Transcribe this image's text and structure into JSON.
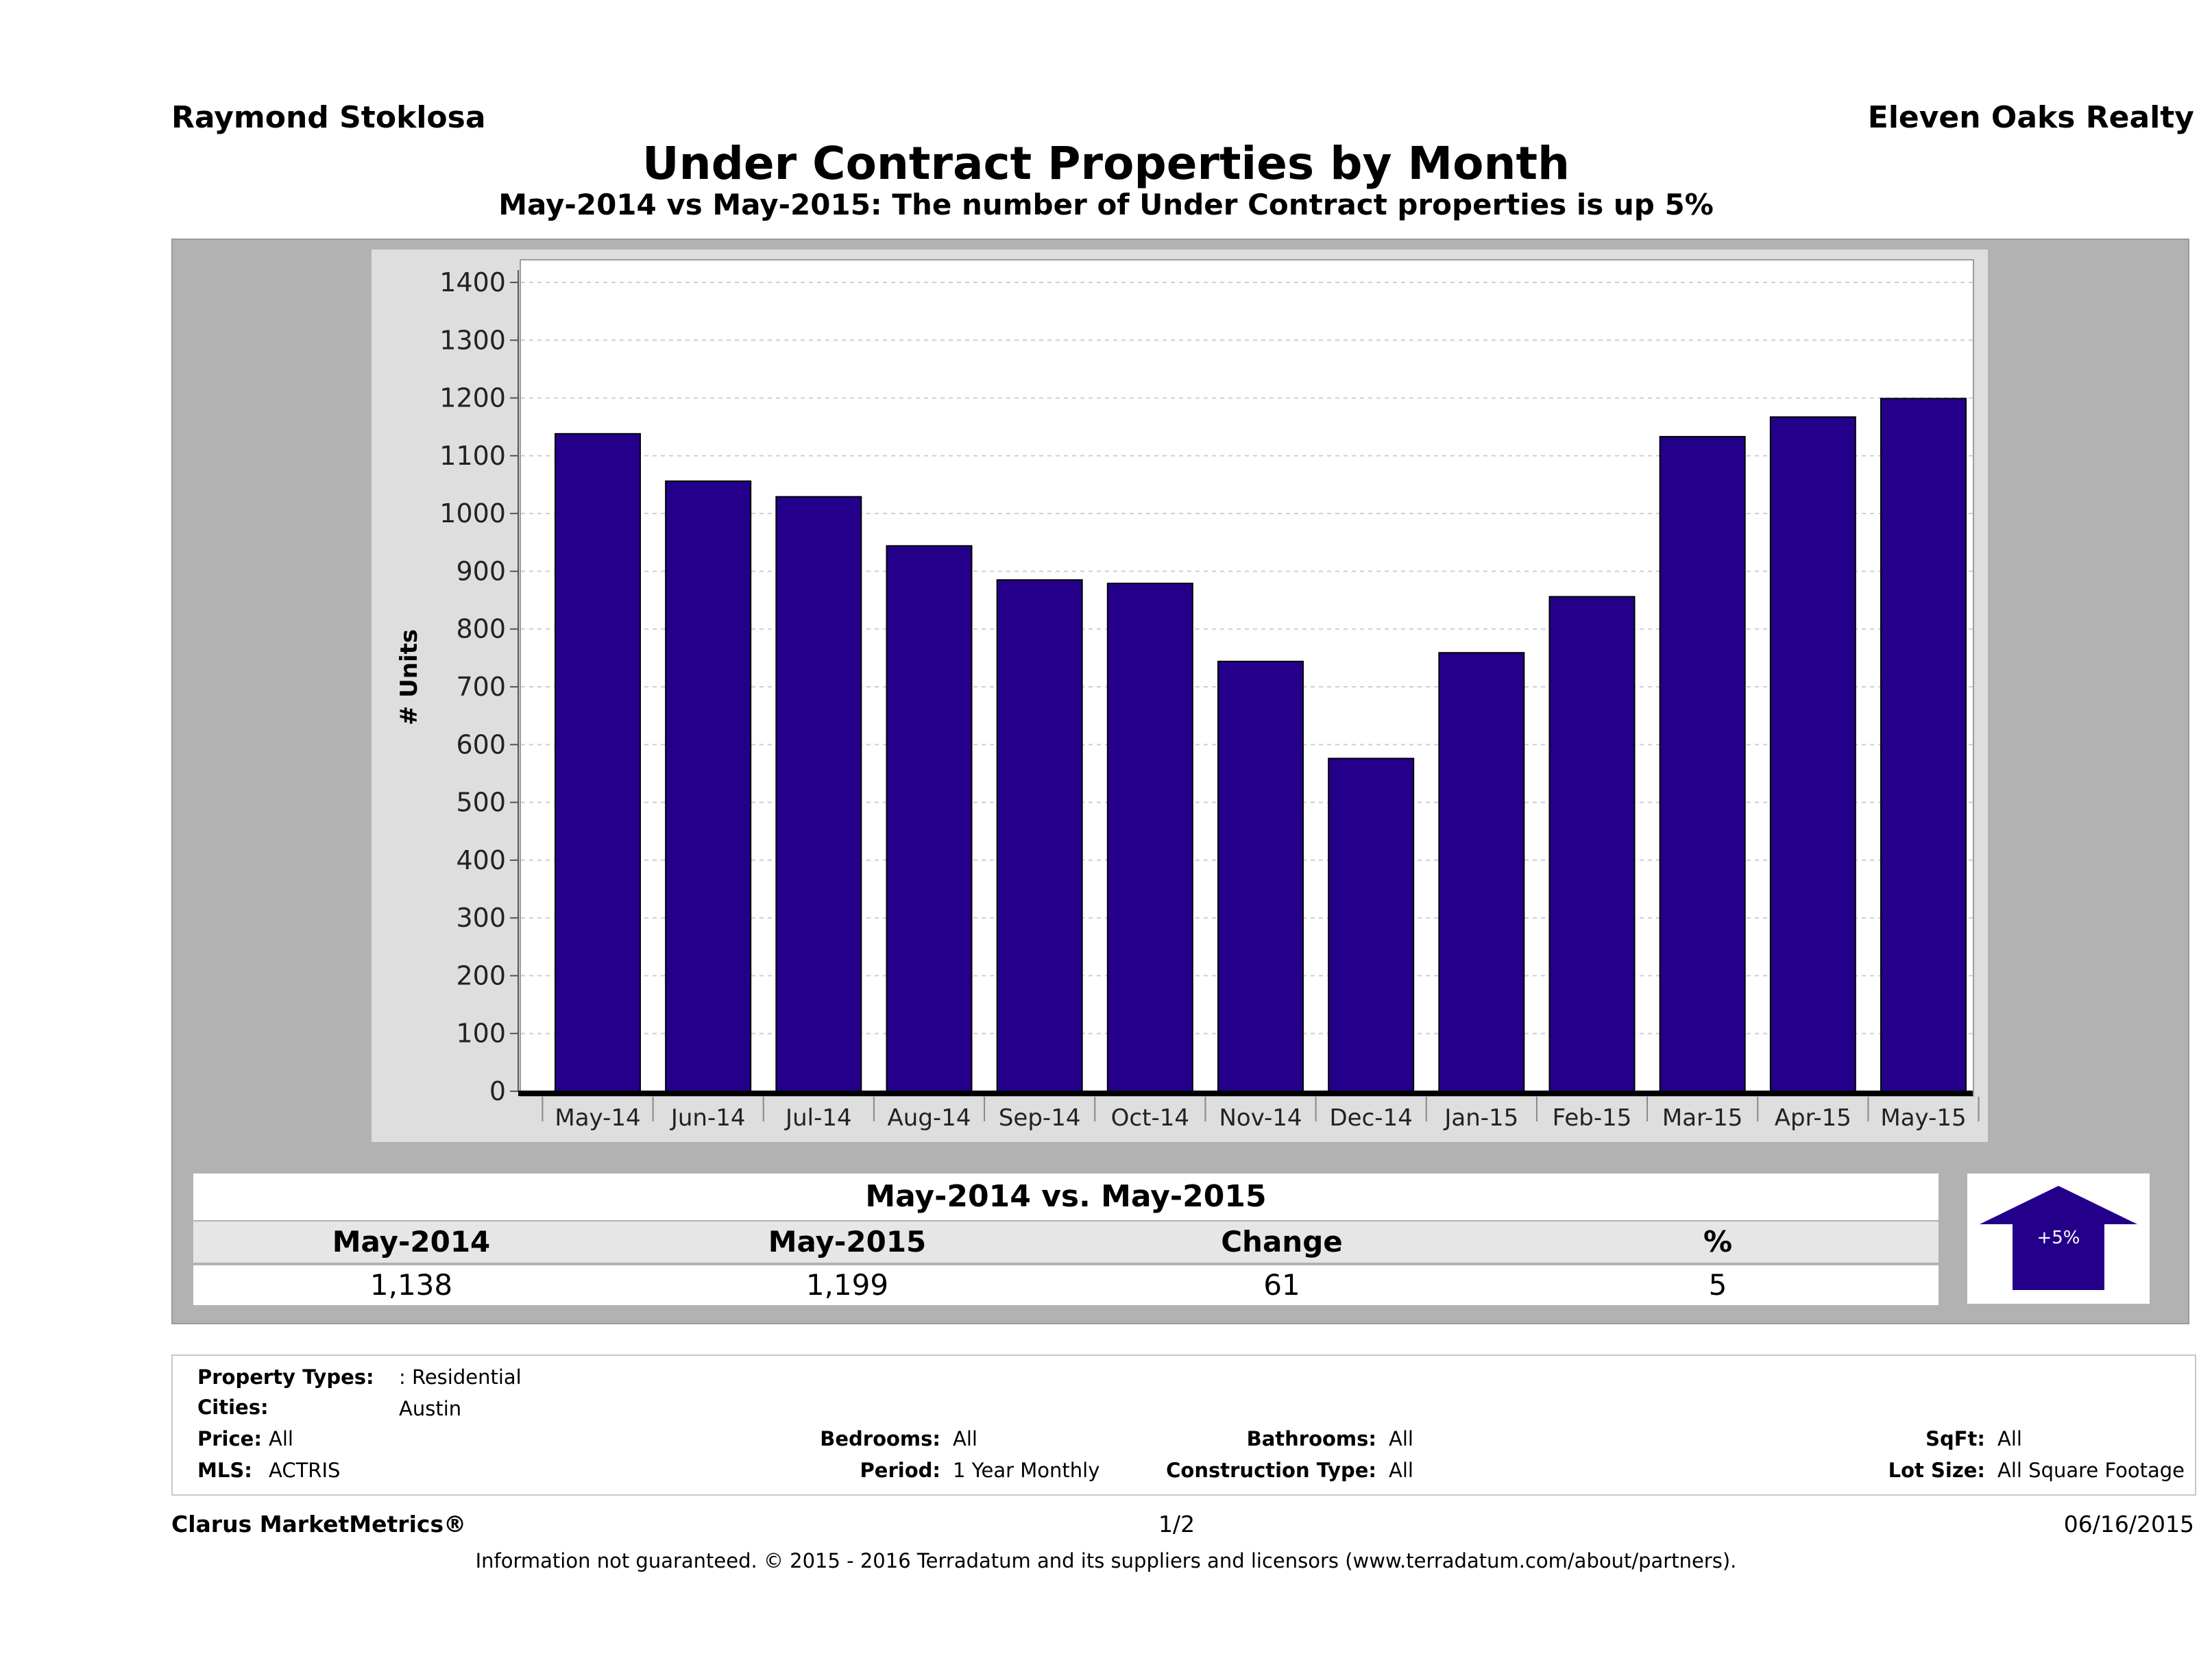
{
  "header": {
    "agent": "Raymond Stoklosa",
    "company": "Eleven Oaks Realty",
    "title": "Under Contract Properties by Month",
    "subtitle": "May-2014 vs May-2015: The number of Under Contract  properties is up 5%"
  },
  "chart_data": {
    "type": "bar",
    "ylabel": "# Units",
    "xlabel": "",
    "ylim": [
      0,
      1400
    ],
    "yticks": [
      0,
      100,
      200,
      300,
      400,
      500,
      600,
      700,
      800,
      900,
      1000,
      1100,
      1200,
      1300,
      1400
    ],
    "grid": true,
    "bar_color": "#24008a",
    "categories": [
      "May-14",
      "Jun-14",
      "Jul-14",
      "Aug-14",
      "Sep-14",
      "Oct-14",
      "Nov-14",
      "Dec-14",
      "Jan-15",
      "Feb-15",
      "Mar-15",
      "Apr-15",
      "May-15"
    ],
    "values": [
      1138,
      1056,
      1029,
      944,
      885,
      879,
      744,
      576,
      759,
      856,
      1133,
      1167,
      1199
    ]
  },
  "comparison": {
    "title": "May-2014 vs. May-2015",
    "headers": [
      "May-2014",
      "May-2015",
      "Change",
      "%"
    ],
    "values": [
      "1,138",
      "1,199",
      "61",
      "5"
    ],
    "badge": "+5%",
    "badge_direction": "up",
    "badge_color": "#24008a"
  },
  "filters": {
    "property_types_label": "Property Types:",
    "property_types_value": ": Residential",
    "cities_label": "Cities:",
    "cities_value": "Austin",
    "price_label": "Price:",
    "price_value": "All",
    "mls_label": "MLS:",
    "mls_value": "ACTRIS",
    "bedrooms_label": "Bedrooms:",
    "bedrooms_value": "All",
    "period_label": "Period:",
    "period_value": "1 Year Monthly",
    "bathrooms_label": "Bathrooms:",
    "bathrooms_value": "All",
    "construction_label": "Construction Type:",
    "construction_value": "All",
    "sqft_label": "SqFt:",
    "sqft_value": "All",
    "lotsize_label": "Lot Size:",
    "lotsize_value": "All Square Footage"
  },
  "footer": {
    "brand": "Clarus MarketMetrics®",
    "page": "1/2",
    "date": "06/16/2015",
    "disclaimer": "Information not guaranteed. © 2015 - 2016 Terradatum and its suppliers and licensors (www.terradatum.com/about/partners)."
  }
}
